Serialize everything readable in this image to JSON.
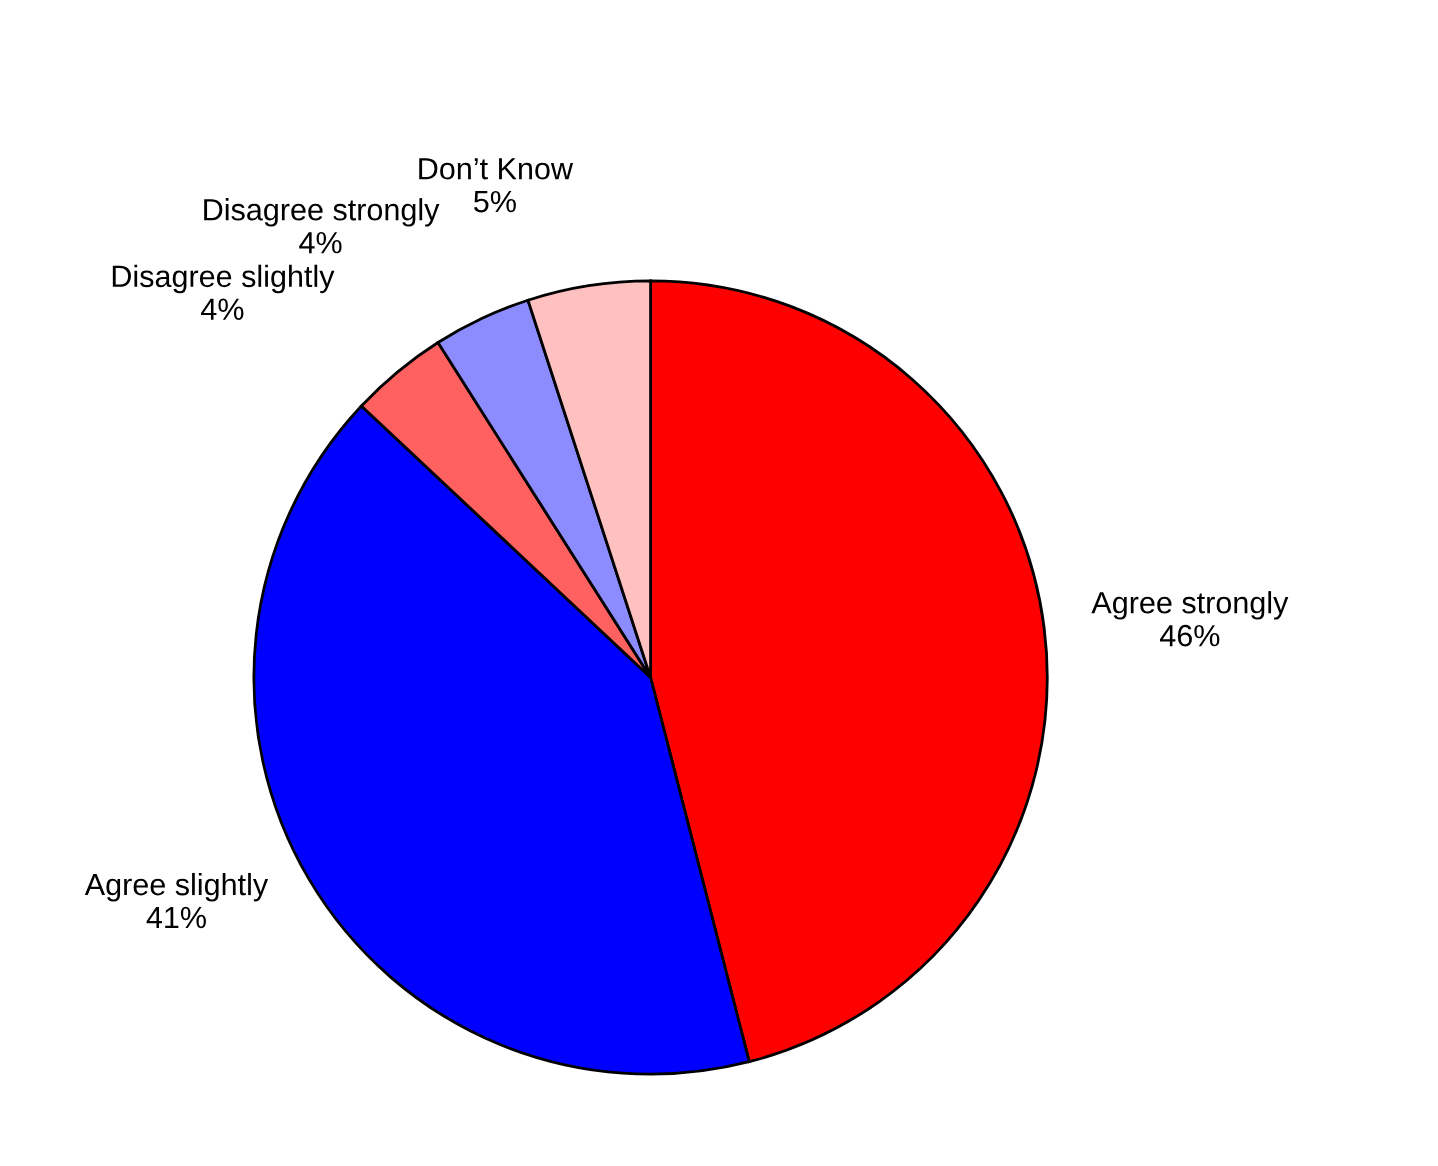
{
  "chart_data": {
    "type": "pie",
    "categories": [
      "Agree strongly",
      "Agree slightly",
      "Disagree slightly",
      "Disagree strongly",
      "Don’t Know"
    ],
    "values": [
      46,
      41,
      4,
      4,
      5
    ],
    "value_labels": [
      "46%",
      "41%",
      "4%",
      "4%",
      "5%"
    ],
    "colors": [
      "#ff0000",
      "#0000ff",
      "#ff6060",
      "#8c8cff",
      "#ffc0c0"
    ]
  }
}
